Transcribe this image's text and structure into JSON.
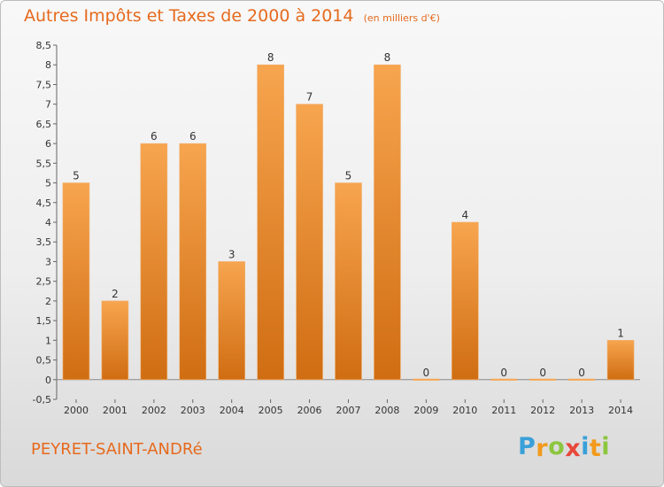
{
  "chart_data": {
    "type": "bar",
    "title": "Autres Impôts et Taxes de 2000 à 2014",
    "unit_note": "(en milliers d'€)",
    "categories": [
      "2000",
      "2001",
      "2002",
      "2003",
      "2004",
      "2005",
      "2006",
      "2007",
      "2008",
      "2009",
      "2010",
      "2011",
      "2012",
      "2013",
      "2014"
    ],
    "values": [
      5,
      2,
      6,
      6,
      3,
      8,
      7,
      5,
      8,
      0,
      4,
      0,
      0,
      0,
      1
    ],
    "data_labels": [
      "5",
      "2",
      "6",
      "6",
      "3",
      "8",
      "7",
      "5",
      "8",
      "0",
      "4",
      "0",
      "0",
      "0",
      "1"
    ],
    "y_ticks": [
      "-0,5",
      "0",
      "0,5",
      "1",
      "1,5",
      "2",
      "2,5",
      "3",
      "3,5",
      "4",
      "4,5",
      "5",
      "5,5",
      "6",
      "6,5",
      "7",
      "7,5",
      "8",
      "8,5"
    ],
    "ylim": [
      -0.5,
      8.5
    ],
    "grid": false,
    "bar_color_top": "#f7a54f",
    "bar_color_bottom": "#d06d12"
  },
  "commune": "PEYRET-SAINT-ANDRé",
  "brand": {
    "letters": [
      "P",
      "r",
      "o",
      "x",
      "i",
      "t",
      "i"
    ],
    "colors": [
      "#3aa0d8",
      "#f29a1b",
      "#8cc63e",
      "#e8473a",
      "#3aa0d8",
      "#f29a1b",
      "#8cc63e"
    ]
  }
}
